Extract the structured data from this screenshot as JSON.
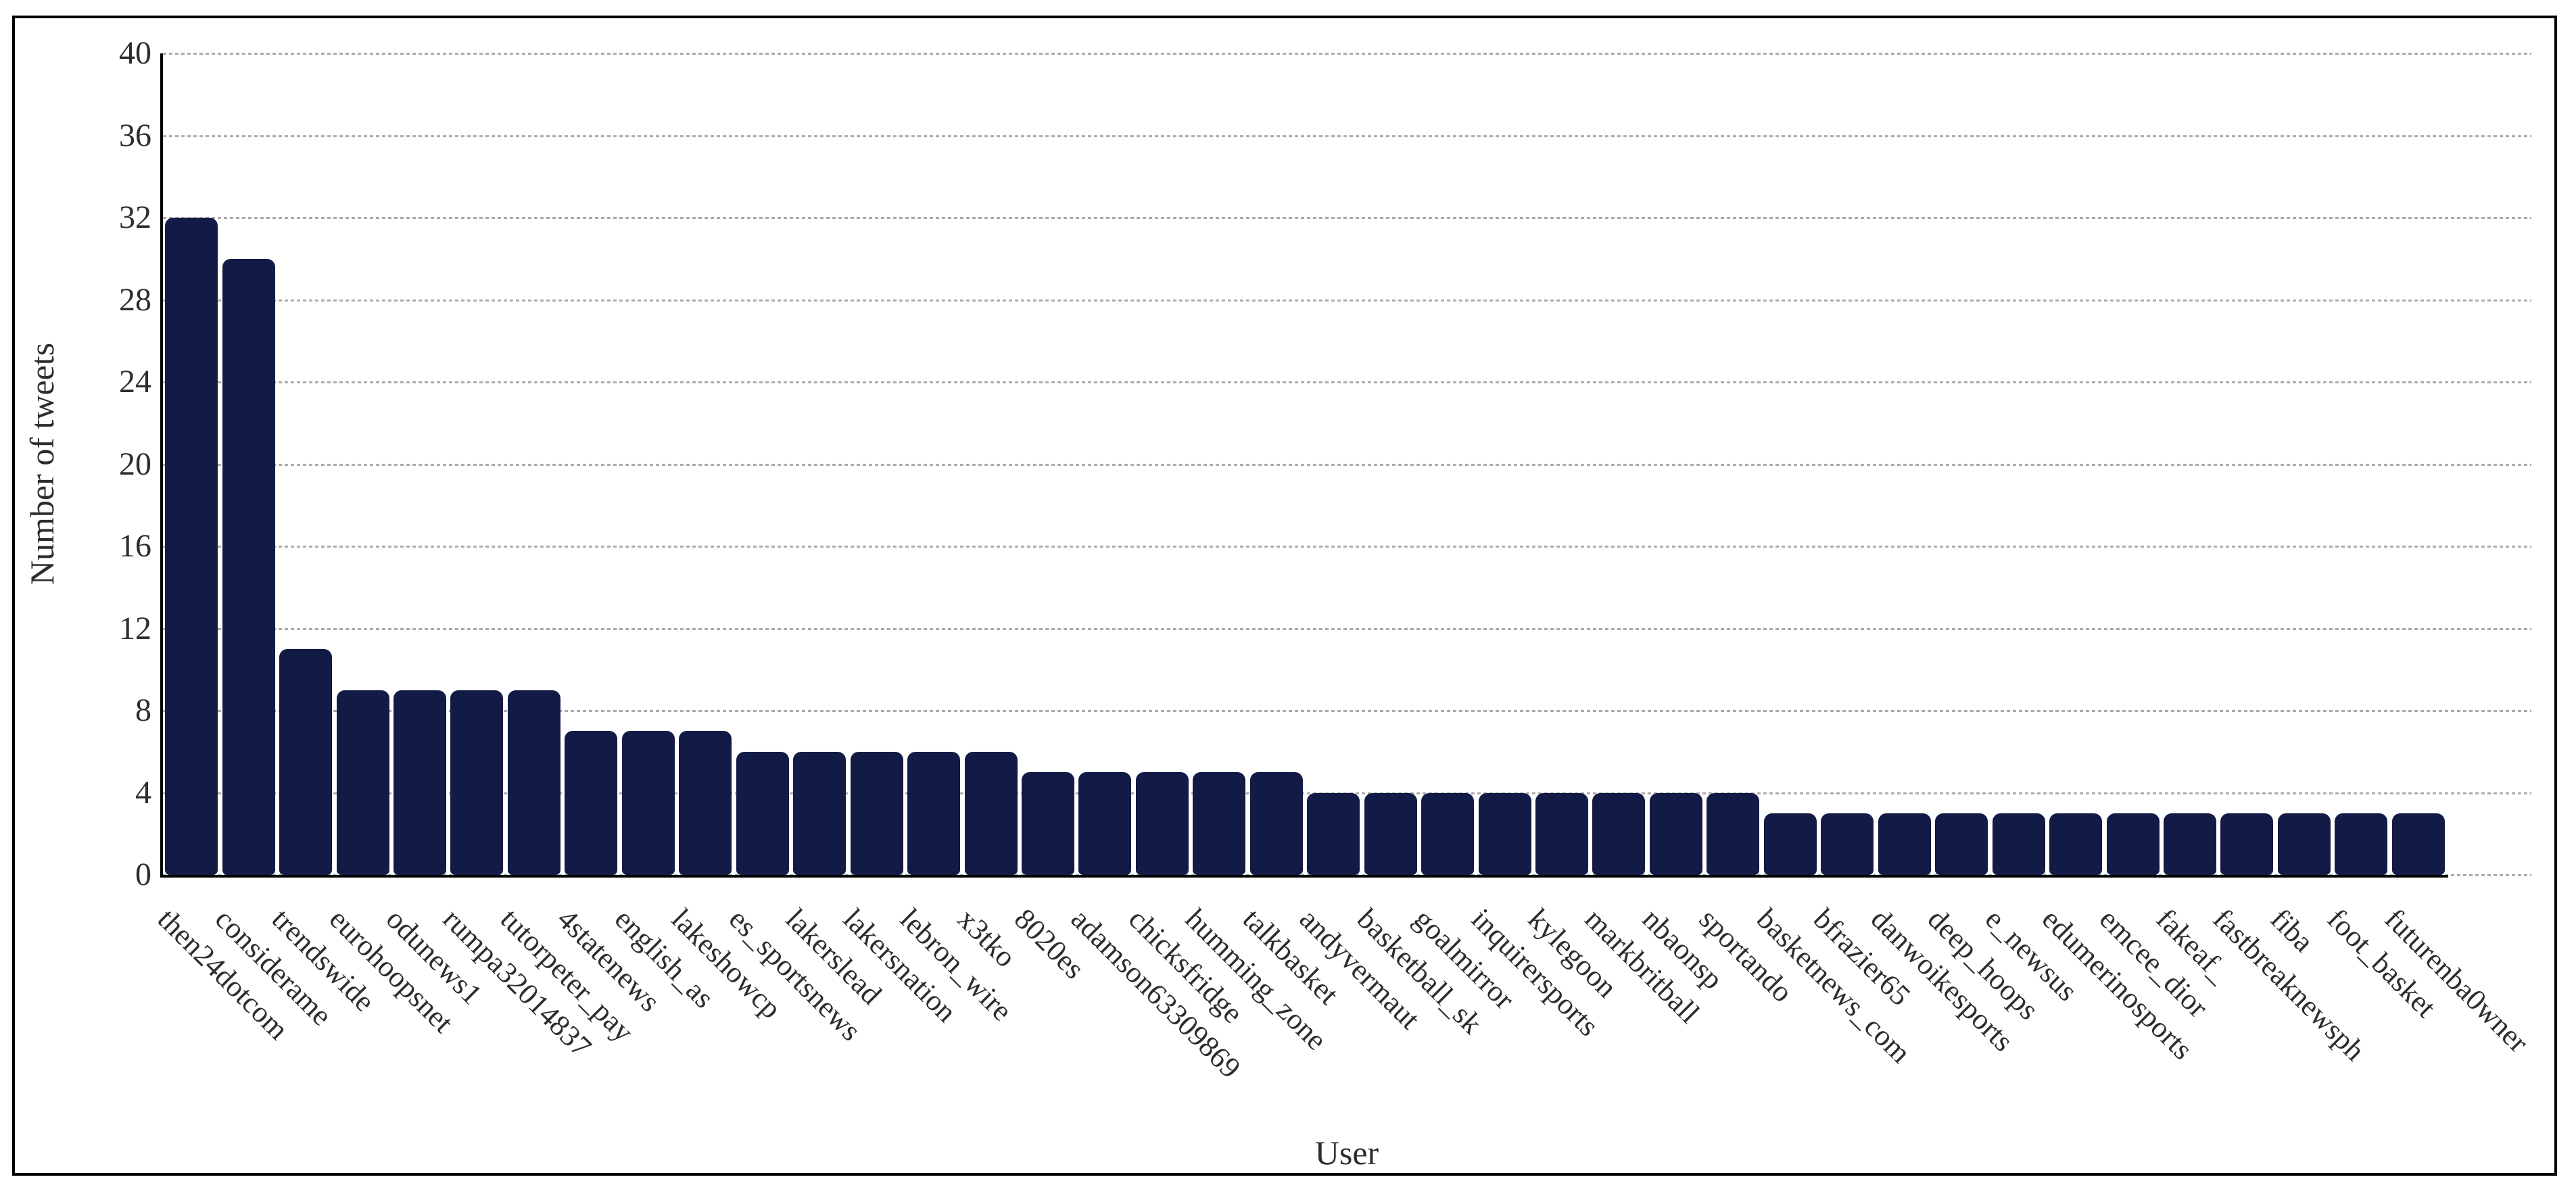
{
  "chart_data": {
    "type": "bar",
    "title": "",
    "xlabel": "User",
    "ylabel": "Number of tweets",
    "ylim": [
      0,
      40
    ],
    "yticks": [
      0,
      4,
      8,
      12,
      16,
      20,
      24,
      28,
      32,
      36,
      40
    ],
    "grid": "horizontal dotted",
    "legend": "none",
    "bar_color": "#121b45",
    "categories": [
      "then24dotcom",
      "considerame",
      "trendswide",
      "eurohoopsnet",
      "odunews1",
      "rumpa32014837",
      "tutorpeter_pay",
      "4statenews",
      "english_as",
      "lakeshowcp",
      "es_sportsnews",
      "lakerslead",
      "lakersnation",
      "lebron_wire",
      "x3tko",
      "8020es",
      "adamson63309869",
      "chicksfridge",
      "humming_zone",
      "talkbasket",
      "andyvermaut",
      "basketball_sk",
      "goalmirror",
      "inquirersports",
      "kylegoon",
      "markbritball",
      "nbaonsp",
      "sportando",
      "basketnews_com",
      "bfrazier65",
      "danwoikesports",
      "deep_hoops",
      "e_newsus",
      "edumerinosports",
      "emcee_dior",
      "fakeaf_",
      "fastbreaknewsph",
      "fiba",
      "foot_basket",
      "futurenba0wner"
    ],
    "values": [
      32,
      30,
      11,
      9,
      9,
      9,
      9,
      7,
      7,
      7,
      6,
      6,
      6,
      6,
      6,
      5,
      5,
      5,
      5,
      5,
      4,
      4,
      4,
      4,
      4,
      4,
      4,
      4,
      3,
      3,
      3,
      3,
      3,
      3,
      3,
      3,
      3,
      3,
      3,
      3
    ]
  }
}
